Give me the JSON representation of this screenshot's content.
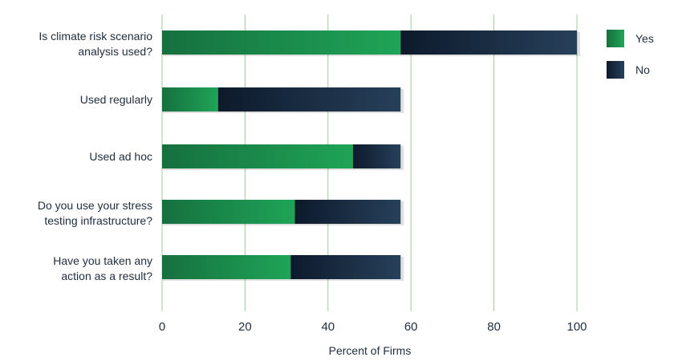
{
  "chart_data": {
    "type": "bar",
    "orientation": "horizontal",
    "stacked": true,
    "categories": [
      [
        "Is climate risk scenario",
        "analysis used?"
      ],
      [
        "Used regularly"
      ],
      [
        "Used ad hoc"
      ],
      [
        "Do you use your stress",
        "testing infrastructure?"
      ],
      [
        "Have you taken any",
        "action as a result?"
      ]
    ],
    "series": [
      {
        "name": "Yes",
        "values": [
          57.5,
          13.5,
          46,
          32,
          31
        ]
      },
      {
        "name": "No",
        "values": [
          42.5,
          44,
          11.5,
          25.5,
          26.5
        ]
      }
    ],
    "xlabel": "Percent of Firms",
    "ylabel": "",
    "xlim": [
      0,
      100
    ],
    "xticks": [
      0,
      20,
      40,
      60,
      80,
      100
    ],
    "grid": "vertical",
    "legend": "top-right",
    "colors": {
      "yes_dark": "#16703f",
      "yes_light": "#1fa457",
      "no_dark": "#0d1a2c",
      "no_light": "#27405a",
      "grid": "#9ccc9e",
      "text": "#1f2d3d"
    }
  }
}
